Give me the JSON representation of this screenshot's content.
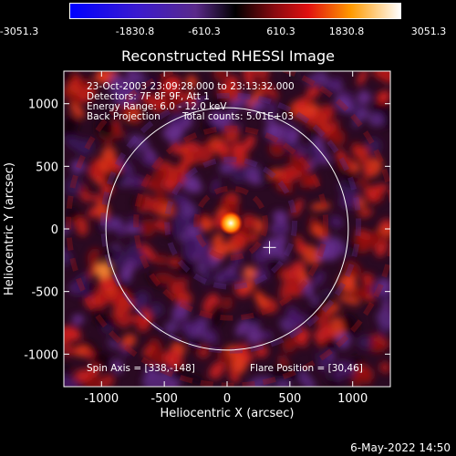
{
  "colorbar": {
    "ticks": [
      "-3051.3",
      "-1830.8",
      "-610.3",
      "610.3",
      "1830.8",
      "3051.3"
    ]
  },
  "title": "Reconstructed RHESSI Image",
  "info": {
    "line1": "23-Oct-2003 23:09:28.000 to 23:13:32.000",
    "line2": "Detectors: 7F 8F 9F, Att 1",
    "line3": "Energy Range: 6.0 - 12.0 keV",
    "line4a": "Back Projection",
    "line4b": "Total counts: 5.01E+03",
    "spin_axis": "Spin Axis = [338,-148]",
    "flare_position": "Flare Position = [30,46]"
  },
  "axes": {
    "xlabel": "Heliocentric X (arcsec)",
    "ylabel": "Heliocentric Y (arcsec)",
    "xticks": [
      "-1000",
      "-500",
      "0",
      "500",
      "1000"
    ],
    "yticks": [
      "1000",
      "500",
      "0",
      "-500",
      "-1000"
    ],
    "xrange": [
      -1300,
      1300
    ],
    "yrange": [
      -1260,
      1260
    ]
  },
  "image": {
    "flare_x": 30,
    "flare_y": 46,
    "spin_x": 338,
    "spin_y": -148,
    "solar_radius": 965
  },
  "timestamp": "6-May-2022 14:50"
}
